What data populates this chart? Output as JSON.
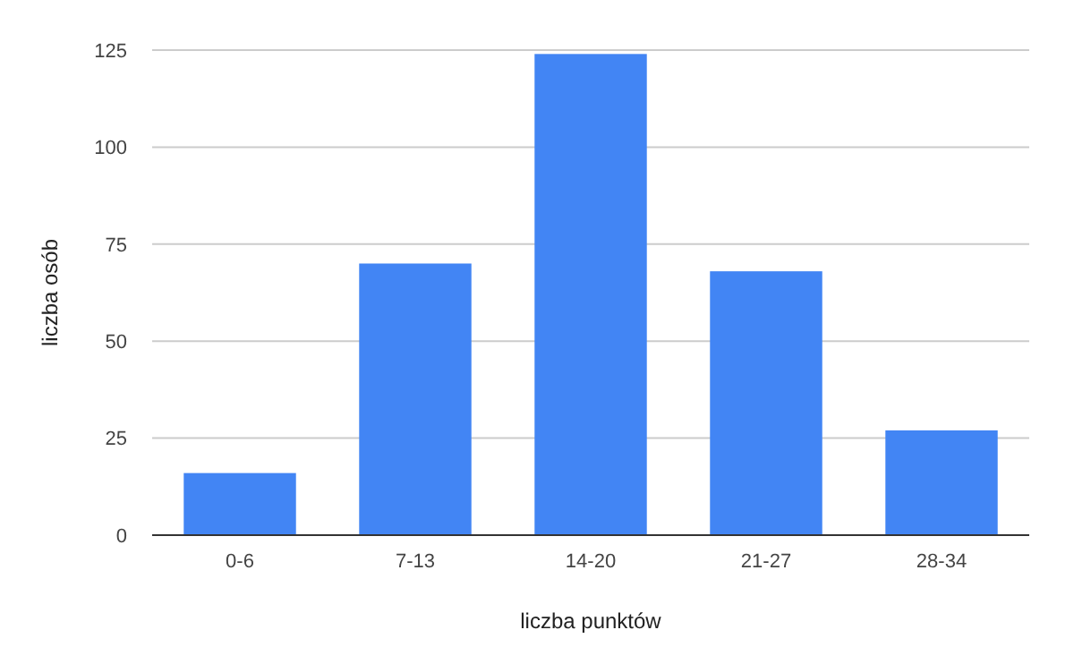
{
  "chart_data": {
    "type": "bar",
    "xlabel": "liczba punktów",
    "ylabel": "liczba osób",
    "categories": [
      "0-6",
      "7-13",
      "14-20",
      "21-27",
      "28-34"
    ],
    "values": [
      16,
      70,
      124,
      68,
      27
    ],
    "color": "#4285f4",
    "ylim": [
      0,
      125
    ],
    "yticks": [
      0,
      25,
      50,
      75,
      100,
      125
    ],
    "grid": "y"
  }
}
